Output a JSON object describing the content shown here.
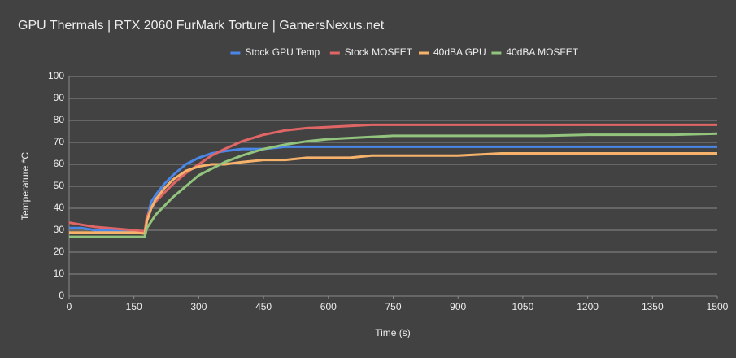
{
  "chart_data": {
    "type": "line",
    "title": "GPU Thermals | RTX 2060 FurMark Torture | GamersNexus.net",
    "x_label": "Time (s)",
    "y_label": "Temperature *C",
    "x": [
      0,
      30,
      60,
      90,
      120,
      150,
      175,
      180,
      190,
      200,
      220,
      240,
      270,
      300,
      330,
      360,
      400,
      450,
      500,
      550,
      600,
      650,
      700,
      750,
      800,
      900,
      1000,
      1100,
      1200,
      1300,
      1400,
      1500
    ],
    "series": [
      {
        "name": "Stock GPU Temp",
        "color": "#4a86e8",
        "values": [
          31,
          31,
          30,
          30,
          30,
          29,
          29,
          35,
          43,
          46,
          51,
          55,
          60,
          63,
          65,
          66,
          67,
          67,
          68,
          68,
          68,
          68,
          68,
          68,
          68,
          68,
          68,
          68,
          68,
          68,
          68,
          68
        ]
      },
      {
        "name": "Stock MOSFET",
        "color": "#e06666",
        "values": [
          33.5,
          32.5,
          31.5,
          31,
          30.5,
          30,
          29.5,
          36,
          40,
          43,
          47,
          51,
          56,
          60,
          64,
          67,
          70.5,
          73.5,
          75.5,
          76.5,
          77,
          77.5,
          78,
          78,
          78,
          78,
          78,
          78,
          78,
          78,
          78,
          78
        ]
      },
      {
        "name": "40dBA GPU",
        "color": "#f6b26b",
        "values": [
          29,
          29,
          29,
          29,
          29,
          29,
          28.5,
          34,
          40,
          44,
          49,
          53,
          57,
          59,
          60,
          60,
          61,
          62,
          62,
          63,
          63,
          63,
          64,
          64,
          64,
          64,
          65,
          65,
          65,
          65,
          65,
          65
        ]
      },
      {
        "name": "40dBA MOSFET",
        "color": "#93c47d",
        "values": [
          27,
          27,
          27,
          27,
          27,
          27,
          27,
          31,
          34,
          37,
          41,
          45,
          50,
          55,
          58,
          61,
          64,
          67,
          69,
          70.5,
          71.5,
          72,
          72.5,
          73,
          73,
          73,
          73,
          73,
          73.5,
          73.5,
          73.5,
          74
        ]
      }
    ],
    "xlim": [
      0,
      1500
    ],
    "xticks": [
      0,
      150,
      300,
      450,
      600,
      750,
      900,
      1050,
      1200,
      1350,
      1500
    ],
    "ylim": [
      0,
      100
    ],
    "yticks": [
      0,
      10,
      20,
      30,
      40,
      50,
      60,
      70,
      80,
      90,
      100
    ],
    "grid": true,
    "legend": "top"
  }
}
